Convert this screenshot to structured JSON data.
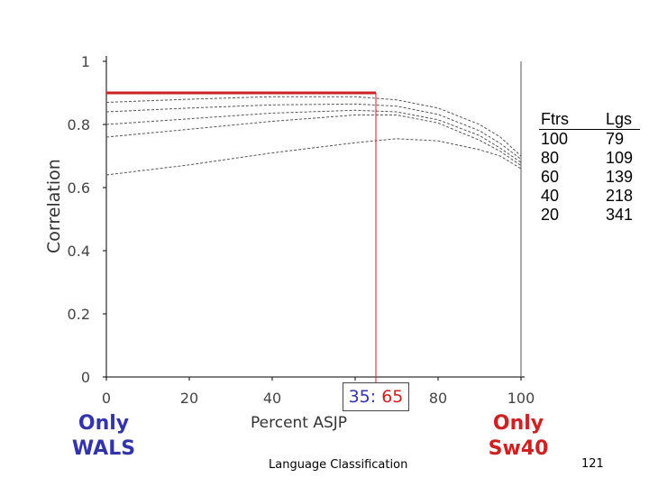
{
  "chart_data": {
    "type": "line",
    "title": "",
    "xlabel": "Percent ASJP",
    "ylabel": "Correlation",
    "xlim": [
      0,
      100
    ],
    "ylim": [
      0,
      1
    ],
    "x_ticks": [
      "0",
      "20",
      "40",
      "60",
      "80",
      "100"
    ],
    "y_ticks": [
      "0",
      "0.2",
      "0.4",
      "0.6",
      "0.8",
      "1"
    ],
    "series": [
      {
        "name": "20 features / 341 languages",
        "x": [
          0,
          20,
          40,
          60,
          70,
          80,
          90,
          95,
          100
        ],
        "y": [
          0.64,
          0.672,
          0.71,
          0.742,
          0.755,
          0.748,
          0.72,
          0.7,
          0.66
        ]
      },
      {
        "name": "40 features / 218 languages",
        "x": [
          0,
          20,
          40,
          60,
          70,
          80,
          90,
          95,
          100
        ],
        "y": [
          0.76,
          0.785,
          0.81,
          0.83,
          0.83,
          0.805,
          0.75,
          0.715,
          0.67
        ]
      },
      {
        "name": "60 features / 139 languages",
        "x": [
          0,
          20,
          40,
          60,
          70,
          80,
          90,
          95,
          100
        ],
        "y": [
          0.8,
          0.818,
          0.836,
          0.845,
          0.84,
          0.815,
          0.765,
          0.725,
          0.68
        ]
      },
      {
        "name": "80 features / 109 languages",
        "x": [
          0,
          20,
          40,
          60,
          70,
          80,
          90,
          95,
          100
        ],
        "y": [
          0.84,
          0.852,
          0.862,
          0.865,
          0.858,
          0.832,
          0.78,
          0.74,
          0.69
        ]
      },
      {
        "name": "100 features / 79 languages",
        "x": [
          0,
          20,
          40,
          60,
          70,
          80,
          90,
          95,
          100
        ],
        "y": [
          0.87,
          0.88,
          0.888,
          0.888,
          0.878,
          0.852,
          0.8,
          0.76,
          0.7
        ]
      }
    ],
    "annotations": {
      "horizontal_line": {
        "y": 0.9,
        "x_from": 0,
        "x_to": 65,
        "color": "#cc2222"
      },
      "vertical_line": {
        "x": 65,
        "color": "#cc2222"
      },
      "ratio_label": {
        "left": "35",
        "separator": ":",
        "right": "65"
      },
      "left_note": [
        "Only",
        "WALS"
      ],
      "right_note": [
        "Only",
        "Sw40"
      ]
    },
    "legend": {
      "position": "right",
      "headers": [
        "Ftrs",
        "Lgs"
      ],
      "rows": [
        [
          "100",
          "79"
        ],
        [
          "80",
          "109"
        ],
        [
          "60",
          "139"
        ],
        [
          "40",
          "218"
        ],
        [
          "20",
          "341"
        ]
      ]
    }
  },
  "footer": {
    "text": "Language Classification",
    "page_number": "121"
  },
  "colors": {
    "accent_blue": "#3333aa",
    "accent_red": "#cc2222",
    "curve": "#555555"
  }
}
